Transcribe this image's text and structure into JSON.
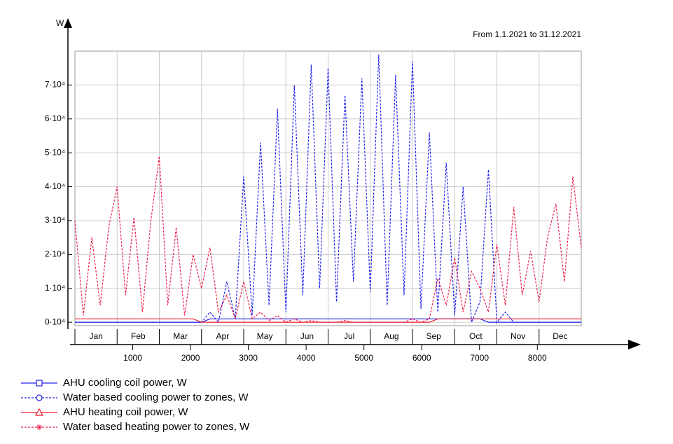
{
  "chart_data": {
    "type": "line",
    "subtitle": "From 1.1.2021 to 31.12.2021",
    "y_label": "W",
    "months": [
      "Jan",
      "Feb",
      "Mar",
      "Apr",
      "May",
      "Jun",
      "Jul",
      "Aug",
      "Sep",
      "Oct",
      "Nov",
      "Dec"
    ],
    "x": [
      0,
      146,
      292,
      438,
      584,
      730,
      876,
      1022,
      1168,
      1314,
      1460,
      1606,
      1752,
      1898,
      2044,
      2190,
      2336,
      2482,
      2628,
      2774,
      2920,
      3066,
      3212,
      3358,
      3504,
      3650,
      3796,
      3942,
      4088,
      4234,
      4380,
      4526,
      4672,
      4818,
      4964,
      5110,
      5256,
      5402,
      5548,
      5694,
      5840,
      5986,
      6132,
      6278,
      6424,
      6570,
      6716,
      6862,
      7008,
      7154,
      7300,
      7446,
      7592,
      7738,
      7884,
      8030,
      8176,
      8322,
      8468,
      8614,
      8760
    ],
    "xlim": [
      0,
      8760
    ],
    "xticks": [
      1000,
      2000,
      3000,
      4000,
      5000,
      6000,
      7000,
      8000
    ],
    "ylim": [
      -1000,
      80000
    ],
    "yticks": [
      {
        "value": 0,
        "label": "0·10⁴"
      },
      {
        "value": 10000,
        "label": "1·10⁴"
      },
      {
        "value": 20000,
        "label": "2·10⁴"
      },
      {
        "value": 30000,
        "label": "3·10⁴"
      },
      {
        "value": 40000,
        "label": "4·10⁴"
      },
      {
        "value": 50000,
        "label": "5·10⁴"
      },
      {
        "value": 60000,
        "label": "6·10⁴"
      },
      {
        "value": 70000,
        "label": "7·10⁴"
      }
    ],
    "grid": true,
    "series": [
      {
        "name": "AHU cooling coil power, W",
        "color": "#2020ee",
        "style": "solid",
        "marker": "square",
        "values": [
          0,
          0,
          0,
          0,
          0,
          0,
          0,
          0,
          0,
          0,
          0,
          0,
          0,
          0,
          0,
          0,
          1000,
          1000,
          1000,
          1000,
          1000,
          1000,
          1000,
          1000,
          1000,
          1000,
          1000,
          1000,
          1000,
          1000,
          1000,
          1000,
          1000,
          1000,
          1000,
          1000,
          1000,
          1000,
          1000,
          1000,
          1000,
          1000,
          1000,
          1000,
          1000,
          1000,
          1000,
          1000,
          1000,
          0,
          0,
          0,
          0,
          0,
          0,
          0,
          0,
          0,
          0,
          0,
          0
        ]
      },
      {
        "name": "Water based cooling power to zones, W",
        "color": "#2020ee",
        "style": "dashed",
        "marker": "circle",
        "values": [
          0,
          0,
          0,
          0,
          0,
          0,
          0,
          0,
          0,
          0,
          0,
          0,
          0,
          0,
          0,
          0,
          3000,
          0,
          12000,
          1000,
          43000,
          2000,
          53000,
          5000,
          63000,
          3000,
          70000,
          8000,
          76000,
          10000,
          75000,
          6000,
          67000,
          12000,
          72000,
          9000,
          79000,
          5000,
          73000,
          8000,
          77000,
          4000,
          56000,
          3000,
          47000,
          2000,
          40000,
          0,
          6000,
          45000,
          0,
          3000,
          0,
          0,
          0,
          0,
          0,
          0,
          0,
          0,
          0
        ]
      },
      {
        "name": "AHU heating coil power, W",
        "color": "#ee1c2c",
        "style": "solid",
        "marker": "triangle",
        "values": [
          1000,
          1000,
          1000,
          1000,
          1000,
          1000,
          1000,
          1000,
          1000,
          1000,
          1000,
          1000,
          1000,
          1000,
          1000,
          0,
          0,
          0,
          0,
          0,
          0,
          0,
          0,
          0,
          0,
          0,
          0,
          0,
          0,
          0,
          0,
          0,
          0,
          0,
          0,
          0,
          0,
          0,
          0,
          0,
          0,
          0,
          0,
          1000,
          1000,
          1000,
          1000,
          1000,
          1000,
          1000,
          1000,
          1000,
          1000,
          1000,
          1000,
          1000,
          1000,
          1000,
          1000,
          1000,
          1000
        ]
      },
      {
        "name": "Water based heating power to zones, W",
        "color": "#ee1c4c",
        "style": "dashed",
        "marker": "asterisk",
        "values": [
          30000,
          2000,
          25000,
          5000,
          28000,
          40000,
          8000,
          31000,
          3000,
          30000,
          49000,
          5000,
          28000,
          2000,
          20000,
          10000,
          22000,
          3000,
          8000,
          1000,
          12000,
          1000,
          3000,
          500,
          2000,
          0,
          1000,
          0,
          500,
          0,
          0,
          0,
          500,
          0,
          0,
          0,
          0,
          0,
          0,
          0,
          1000,
          0,
          1000,
          13000,
          5000,
          19000,
          3000,
          15000,
          10000,
          3000,
          23000,
          5000,
          34000,
          8000,
          21000,
          6000,
          25000,
          35000,
          12000,
          43000,
          22000
        ]
      }
    ]
  }
}
